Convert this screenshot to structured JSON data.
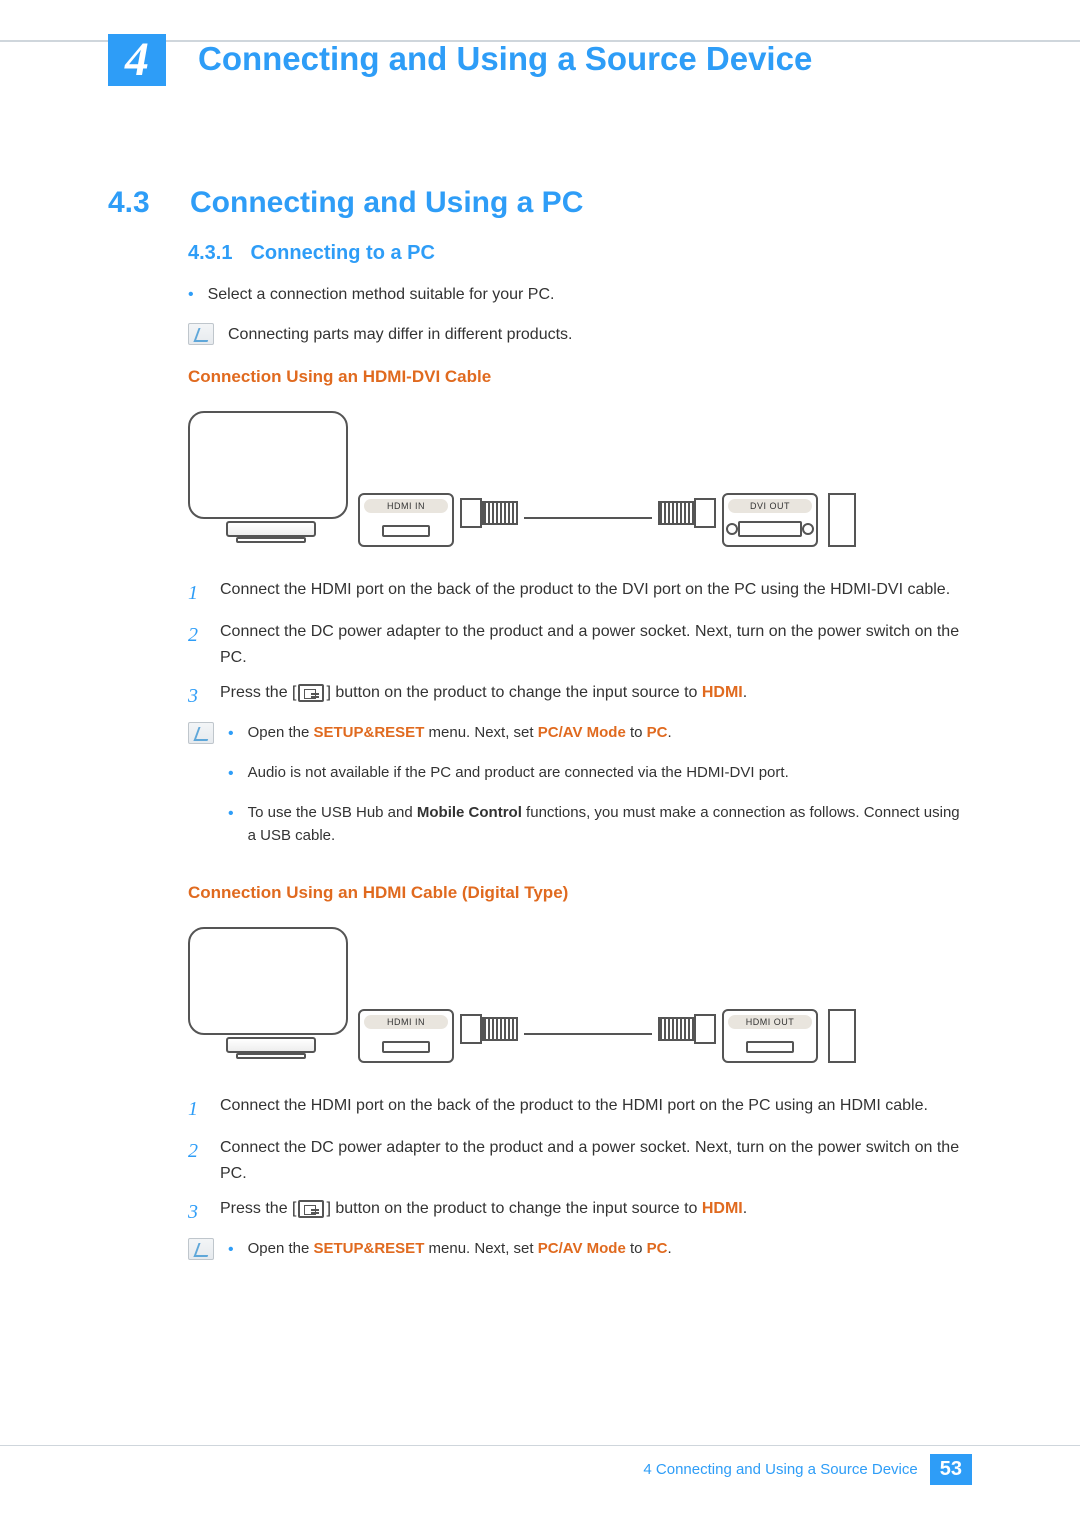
{
  "colors": {
    "accent_blue": "#2e9df7",
    "accent_orange": "#e06a1f",
    "rule_gray": "#cfd6dc",
    "text": "#333333",
    "background": "#ffffff"
  },
  "chapter": {
    "number": "4",
    "title": "Connecting and Using a Source Device"
  },
  "section": {
    "number": "4.3",
    "title": "Connecting and Using a PC"
  },
  "subsection": {
    "number": "4.3.1",
    "title": "Connecting to a PC"
  },
  "intro_bullet": "Select a connection method suitable for your PC.",
  "intro_note": "Connecting parts may differ in different products.",
  "hdmi_dvi": {
    "heading": "Connection Using an HDMI-DVI Cable",
    "port_in_label": "HDMI IN",
    "port_out_label": "DVI OUT",
    "steps": {
      "s1": "Connect the HDMI port on the back of the product to the DVI port on the PC using the HDMI-DVI cable.",
      "s2": "Connect the DC power adapter to the product and a power socket. Next, turn on the power switch on the PC.",
      "s3_a": "Press the [",
      "s3_b": "] button on the product to change the input source to ",
      "s3_hl": "HDMI",
      "s3_c": "."
    },
    "notes": {
      "n1_a": "Open the ",
      "n1_b": "SETUP&RESET",
      "n1_c": " menu. Next, set ",
      "n1_d": "PC/AV Mode",
      "n1_e": " to ",
      "n1_f": "PC",
      "n1_g": ".",
      "n2": "Audio is not available if the PC and product are connected via the HDMI-DVI port.",
      "n3_a": "To use the USB Hub and ",
      "n3_b": "Mobile Control",
      "n3_c": " functions, you must make a connection as follows. Connect using a USB cable."
    }
  },
  "hdmi": {
    "heading": "Connection Using an HDMI Cable (Digital Type)",
    "port_in_label": "HDMI IN",
    "port_out_label": "HDMI OUT",
    "steps": {
      "s1": "Connect the HDMI port on the back of the product to the HDMI port on the PC using an HDMI cable.",
      "s2": "Connect the DC power adapter to the product and a power socket. Next, turn on the power switch on the PC.",
      "s3_a": "Press the [",
      "s3_b": "] button on the product to change the input source to ",
      "s3_hl": "HDMI",
      "s3_c": "."
    },
    "notes": {
      "n1_a": "Open the ",
      "n1_b": "SETUP&RESET",
      "n1_c": " menu. Next, set ",
      "n1_d": "PC/AV Mode",
      "n1_e": " to ",
      "n1_f": "PC",
      "n1_g": "."
    }
  },
  "footer": {
    "text": "4 Connecting and Using a Source Device",
    "page": "53"
  },
  "step_numbers": {
    "n1": "1",
    "n2": "2",
    "n3": "3"
  }
}
